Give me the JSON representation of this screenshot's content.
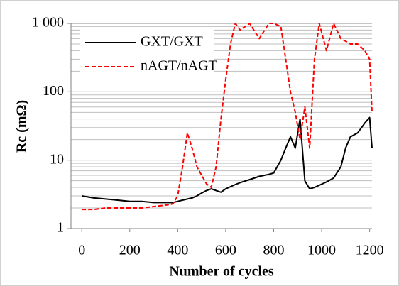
{
  "chart_data": {
    "type": "line",
    "xlabel": "Number of cycles",
    "ylabel": "Rc (mΩ)",
    "x": [
      0,
      50,
      100,
      150,
      200,
      250,
      300,
      350,
      380,
      400,
      420,
      440,
      460,
      480,
      500,
      520,
      540,
      560,
      580,
      600,
      620,
      640,
      660,
      700,
      740,
      780,
      800,
      830,
      850,
      870,
      890,
      910,
      930,
      950,
      970,
      990,
      1020,
      1050,
      1080,
      1100,
      1120,
      1150,
      1180,
      1200,
      1210
    ],
    "series": [
      {
        "name": "GXT/GXT",
        "color": "#000000",
        "dash": false,
        "values": [
          3.0,
          2.8,
          2.7,
          2.6,
          2.5,
          2.5,
          2.4,
          2.4,
          2.4,
          2.5,
          2.6,
          2.7,
          2.8,
          3.0,
          3.3,
          3.6,
          3.8,
          3.6,
          3.4,
          3.8,
          4.1,
          4.4,
          4.7,
          5.2,
          5.8,
          6.2,
          6.5,
          10,
          15,
          22,
          15,
          40,
          5,
          3.8,
          4.0,
          4.3,
          4.8,
          5.5,
          8,
          15,
          22,
          25,
          35,
          42,
          15
        ]
      },
      {
        "name": "nAGT/nAGT",
        "color": "#ff0000",
        "dash": true,
        "values": [
          1.9,
          1.9,
          2.0,
          2.0,
          2.0,
          2.0,
          2.1,
          2.2,
          2.3,
          3,
          8,
          25,
          15,
          8,
          6,
          4.5,
          4,
          8,
          40,
          150,
          500,
          1000,
          800,
          1000,
          600,
          1000,
          1000,
          900,
          300,
          100,
          50,
          20,
          60,
          15,
          300,
          1000,
          400,
          1000,
          600,
          550,
          500,
          500,
          400,
          300,
          50
        ]
      }
    ],
    "xlim": [
      -45,
      1210
    ],
    "xticks": [
      0,
      200,
      400,
      600,
      800,
      1000,
      1200
    ],
    "ylim": [
      1,
      1000
    ],
    "ylog": true,
    "yticks": [
      1,
      10,
      100,
      {
        "value": 1000,
        "label": "1 000"
      }
    ],
    "yminor_ticks": [
      2,
      3,
      4,
      5,
      6,
      7,
      8,
      9,
      20,
      30,
      40,
      50,
      60,
      70,
      80,
      90,
      200,
      300,
      400,
      500,
      600,
      700,
      800,
      900
    ],
    "grid": true,
    "legend": "upper left"
  }
}
